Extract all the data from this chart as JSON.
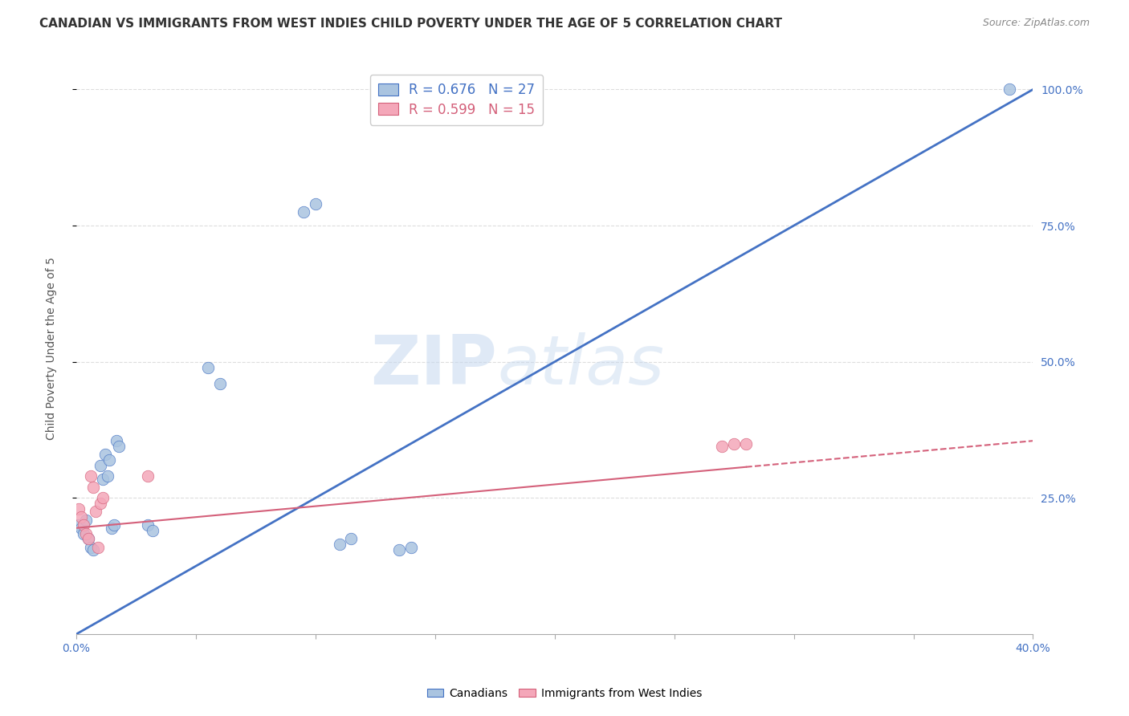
{
  "title": "CANADIAN VS IMMIGRANTS FROM WEST INDIES CHILD POVERTY UNDER THE AGE OF 5 CORRELATION CHART",
  "source": "Source: ZipAtlas.com",
  "ylabel": "Child Poverty Under the Age of 5",
  "xlim": [
    0.0,
    0.4
  ],
  "ylim": [
    0.0,
    1.05
  ],
  "canadians_x": [
    0.001,
    0.002,
    0.003,
    0.004,
    0.005,
    0.006,
    0.007,
    0.01,
    0.011,
    0.012,
    0.013,
    0.014,
    0.015,
    0.016,
    0.017,
    0.018,
    0.03,
    0.032,
    0.055,
    0.06,
    0.095,
    0.1,
    0.11,
    0.115,
    0.135,
    0.14,
    0.39
  ],
  "canadians_y": [
    0.2,
    0.195,
    0.185,
    0.21,
    0.175,
    0.16,
    0.155,
    0.31,
    0.285,
    0.33,
    0.29,
    0.32,
    0.195,
    0.2,
    0.355,
    0.345,
    0.2,
    0.19,
    0.49,
    0.46,
    0.775,
    0.79,
    0.165,
    0.175,
    0.155,
    0.16,
    1.0
  ],
  "westindies_x": [
    0.001,
    0.002,
    0.003,
    0.004,
    0.005,
    0.006,
    0.007,
    0.008,
    0.009,
    0.01,
    0.011,
    0.03,
    0.27,
    0.275,
    0.28
  ],
  "westindies_y": [
    0.23,
    0.215,
    0.2,
    0.185,
    0.175,
    0.29,
    0.27,
    0.225,
    0.16,
    0.24,
    0.25,
    0.29,
    0.345,
    0.35,
    0.35
  ],
  "blue_trendline_x0": 0.0,
  "blue_trendline_y0": 0.0,
  "blue_trendline_x1": 0.4,
  "blue_trendline_y1": 1.0,
  "pink_trendline_x0": 0.0,
  "pink_trendline_y0": 0.195,
  "pink_trendline_x1": 0.4,
  "pink_trendline_y1": 0.355,
  "blue_color": "#aac4e0",
  "blue_line_color": "#4472c4",
  "pink_color": "#f4a7b9",
  "pink_line_color": "#d4607a",
  "R_canadian": 0.676,
  "N_canadian": 27,
  "R_westindies": 0.599,
  "N_westindies": 15,
  "watermark_zip": "ZIP",
  "watermark_atlas": "atlas",
  "background_color": "#ffffff",
  "grid_color": "#dddddd",
  "title_fontsize": 11,
  "label_fontsize": 10,
  "tick_fontsize": 10,
  "tick_color": "#4472c4",
  "marker_size": 110
}
